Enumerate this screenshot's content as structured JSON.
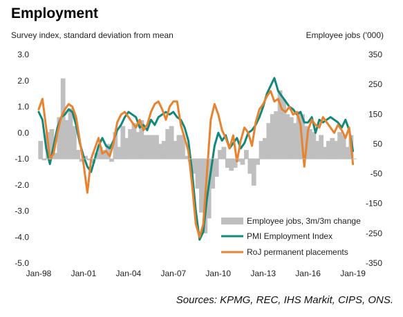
{
  "header": {
    "title": "Employment",
    "left_axis_label": "Survey index, standard deviation from mean",
    "right_axis_label": "Employee jobs ('000)"
  },
  "source": "Sources: KPMG, REC, IHS Markit, CIPS, ONS.",
  "chart_data": {
    "type": "line",
    "title": "Employment",
    "ylabel": "Survey index, standard deviation from mean",
    "y2label": "Employee jobs ('000)",
    "ylim": [
      -5.0,
      3.0
    ],
    "y2lim": [
      -350,
      350
    ],
    "xlim": [
      1998.0,
      2019.25
    ],
    "y_ticks": [
      3.0,
      2.0,
      1.0,
      0.0,
      -1.0,
      -2.0,
      -3.0,
      -4.0,
      -5.0
    ],
    "y_tick_labels": [
      "3.0",
      "2.0",
      "1.0",
      "0.0",
      "-1.0",
      "-2.0",
      "-3.0",
      "-4.0",
      "-5.0"
    ],
    "y2_ticks": [
      350,
      250,
      150,
      50,
      -50,
      -150,
      -250,
      -350
    ],
    "y2_tick_labels": [
      "350",
      "250",
      "150",
      "50",
      "-50",
      "-150",
      "-250",
      "-350"
    ],
    "x_ticks": [
      1998,
      2001,
      2004,
      2007,
      2010,
      2013,
      2016,
      2019
    ],
    "x_tick_labels": [
      "Jan-98",
      "Jan-01",
      "Jan-04",
      "Jan-07",
      "Jan-10",
      "Jan-13",
      "Jan-16",
      "Jan-19"
    ],
    "legend_position": "bottom-right",
    "grid": false,
    "series": [
      {
        "name": "Employee jobs, 3m/3m change",
        "kind": "bar",
        "axis": "right",
        "color": "#bfbfbf",
        "x": [
          1998.0,
          1998.25,
          1998.5,
          1998.75,
          1999.0,
          1999.25,
          1999.5,
          1999.75,
          2000.0,
          2000.25,
          2000.5,
          2000.75,
          2001.0,
          2001.25,
          2001.5,
          2001.75,
          2002.0,
          2002.25,
          2002.5,
          2002.75,
          2003.0,
          2003.25,
          2003.5,
          2003.75,
          2004.0,
          2004.25,
          2004.5,
          2004.75,
          2005.0,
          2005.25,
          2005.5,
          2005.75,
          2006.0,
          2006.25,
          2006.5,
          2006.75,
          2007.0,
          2007.25,
          2007.5,
          2007.75,
          2008.0,
          2008.25,
          2008.5,
          2008.75,
          2009.0,
          2009.25,
          2009.5,
          2009.75,
          2010.0,
          2010.25,
          2010.5,
          2010.75,
          2011.0,
          2011.25,
          2011.5,
          2011.75,
          2012.0,
          2012.25,
          2012.5,
          2012.75,
          2013.0,
          2013.25,
          2013.5,
          2013.75,
          2014.0,
          2014.25,
          2014.5,
          2014.75,
          2015.0,
          2015.25,
          2015.5,
          2015.75,
          2016.0,
          2016.25,
          2016.5,
          2016.75,
          2017.0,
          2017.25,
          2017.5,
          2017.75,
          2018.0,
          2018.25,
          2018.5,
          2018.75
        ],
        "values": [
          60,
          -5,
          90,
          100,
          20,
          140,
          270,
          130,
          170,
          110,
          30,
          -10,
          10,
          -5,
          -15,
          20,
          40,
          30,
          50,
          -10,
          90,
          40,
          110,
          70,
          100,
          120,
          90,
          130,
          80,
          80,
          80,
          80,
          50,
          60,
          100,
          110,
          60,
          80,
          80,
          10,
          -10,
          -50,
          -100,
          -180,
          -250,
          -200,
          -100,
          -60,
          30,
          40,
          -30,
          -40,
          -30,
          -10,
          -20,
          30,
          -50,
          -90,
          -20,
          60,
          70,
          120,
          150,
          160,
          230,
          200,
          150,
          140,
          120,
          160,
          150,
          110,
          100,
          90,
          60,
          80,
          40,
          60,
          70,
          60,
          90,
          80,
          40,
          80
        ]
      },
      {
        "name": "PMI Employment Index",
        "kind": "line",
        "axis": "left",
        "color": "#12887a",
        "x": [
          1998.0,
          1998.25,
          1998.5,
          1998.75,
          1999.0,
          1999.25,
          1999.5,
          1999.75,
          2000.0,
          2000.25,
          2000.5,
          2000.75,
          2001.0,
          2001.25,
          2001.5,
          2001.75,
          2002.0,
          2002.25,
          2002.5,
          2002.75,
          2003.0,
          2003.25,
          2003.5,
          2003.75,
          2004.0,
          2004.25,
          2004.5,
          2004.75,
          2005.0,
          2005.25,
          2005.5,
          2005.75,
          2006.0,
          2006.25,
          2006.5,
          2006.75,
          2007.0,
          2007.25,
          2007.5,
          2007.75,
          2008.0,
          2008.25,
          2008.5,
          2008.75,
          2009.0,
          2009.25,
          2009.5,
          2009.75,
          2010.0,
          2010.25,
          2010.5,
          2010.75,
          2011.0,
          2011.25,
          2011.5,
          2011.75,
          2012.0,
          2012.25,
          2012.5,
          2012.75,
          2013.0,
          2013.25,
          2013.5,
          2013.75,
          2014.0,
          2014.25,
          2014.5,
          2014.75,
          2015.0,
          2015.25,
          2015.5,
          2015.75,
          2016.0,
          2016.25,
          2016.5,
          2016.75,
          2017.0,
          2017.25,
          2017.5,
          2017.75,
          2018.0,
          2018.25,
          2018.5,
          2018.75,
          2019.0
        ],
        "values": [
          0.8,
          0.5,
          -0.6,
          -1.2,
          -0.5,
          0.2,
          0.6,
          0.7,
          0.9,
          0.8,
          0.3,
          -0.4,
          -0.9,
          -1.3,
          -1.5,
          -1.0,
          -0.5,
          -0.2,
          -0.5,
          -0.6,
          -0.3,
          0.1,
          0.3,
          0.6,
          0.8,
          0.7,
          0.6,
          0.2,
          0.3,
          0.1,
          0.5,
          0.3,
          0.6,
          0.7,
          0.8,
          0.7,
          0.8,
          0.6,
          0.5,
          0.2,
          -0.3,
          -1.5,
          -3.0,
          -4.1,
          -3.8,
          -2.5,
          -1.5,
          -0.5,
          0.0,
          -0.3,
          -0.1,
          -0.6,
          -0.4,
          -0.2,
          -0.6,
          -0.4,
          0.0,
          0.1,
          0.3,
          0.6,
          1.0,
          1.5,
          1.8,
          2.1,
          1.6,
          1.4,
          1.2,
          1.0,
          0.9,
          0.7,
          0.8,
          0.4,
          0.4,
          0.6,
          0.0,
          0.5,
          0.4,
          0.5,
          0.6,
          0.5,
          0.4,
          0.2,
          0.5,
          0.1,
          -0.7
        ]
      },
      {
        "name": "RoJ permanent placements",
        "kind": "line",
        "axis": "left",
        "color": "#e8822e",
        "x": [
          1998.0,
          1998.25,
          1998.5,
          1998.75,
          1999.0,
          1999.25,
          1999.5,
          1999.75,
          2000.0,
          2000.25,
          2000.5,
          2000.75,
          2001.0,
          2001.25,
          2001.5,
          2001.75,
          2002.0,
          2002.25,
          2002.5,
          2002.75,
          2003.0,
          2003.25,
          2003.5,
          2003.75,
          2004.0,
          2004.25,
          2004.5,
          2004.75,
          2005.0,
          2005.25,
          2005.5,
          2005.75,
          2006.0,
          2006.25,
          2006.5,
          2006.75,
          2007.0,
          2007.25,
          2007.5,
          2007.75,
          2008.0,
          2008.25,
          2008.5,
          2008.75,
          2009.0,
          2009.25,
          2009.5,
          2009.75,
          2010.0,
          2010.25,
          2010.5,
          2010.75,
          2011.0,
          2011.25,
          2011.5,
          2011.75,
          2012.0,
          2012.25,
          2012.5,
          2012.75,
          2013.0,
          2013.25,
          2013.5,
          2013.75,
          2014.0,
          2014.25,
          2014.5,
          2014.75,
          2015.0,
          2015.25,
          2015.5,
          2015.75,
          2016.0,
          2016.25,
          2016.5,
          2016.75,
          2017.0,
          2017.25,
          2017.5,
          2017.75,
          2018.0,
          2018.25,
          2018.5,
          2018.75,
          2019.0
        ],
        "values": [
          0.9,
          1.3,
          0.2,
          -1.0,
          -0.8,
          0.0,
          0.6,
          0.9,
          1.1,
          1.0,
          0.6,
          -0.3,
          -1.2,
          -2.3,
          -1.0,
          -0.6,
          -0.2,
          -0.8,
          -0.7,
          -0.9,
          -0.4,
          0.4,
          0.7,
          0.8,
          0.6,
          0.4,
          0.2,
          0.5,
          0.1,
          0.3,
          0.8,
          1.1,
          1.2,
          0.9,
          0.5,
          1.0,
          1.2,
          1.2,
          0.3,
          -0.2,
          -0.7,
          -2.0,
          -3.5,
          -4.0,
          -3.5,
          -1.5,
          0.5,
          1.1,
          0.7,
          0.1,
          -0.2,
          -0.6,
          -0.1,
          -1.1,
          -0.3,
          0.2,
          0.0,
          -0.5,
          0.4,
          0.9,
          1.1,
          1.4,
          1.6,
          1.2,
          1.3,
          0.9,
          0.8,
          1.0,
          0.7,
          0.8,
          0.3,
          -1.3,
          0.1,
          0.5,
          0.3,
          0.2,
          0.6,
          0.4,
          0.2,
          0.0,
          0.3,
          0.1,
          -0.2,
          0.2,
          -1.2
        ]
      }
    ]
  }
}
